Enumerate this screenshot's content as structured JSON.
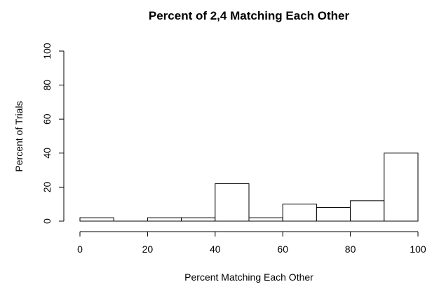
{
  "chart_data": {
    "type": "bar",
    "title": "Percent of 2,4 Matching Each Other",
    "xlabel": "Percent Matching Each Other",
    "ylabel": "Percent of Trials",
    "xlim": [
      0,
      100
    ],
    "ylim": [
      0,
      100
    ],
    "x_ticks": [
      0,
      20,
      40,
      60,
      80,
      100
    ],
    "y_ticks": [
      0,
      20,
      40,
      60,
      80,
      100
    ],
    "bins": [
      {
        "start": 0,
        "end": 10,
        "value": 2
      },
      {
        "start": 10,
        "end": 20,
        "value": 0
      },
      {
        "start": 20,
        "end": 30,
        "value": 2
      },
      {
        "start": 30,
        "end": 40,
        "value": 2
      },
      {
        "start": 40,
        "end": 50,
        "value": 22
      },
      {
        "start": 50,
        "end": 60,
        "value": 2
      },
      {
        "start": 60,
        "end": 70,
        "value": 10
      },
      {
        "start": 70,
        "end": 80,
        "value": 8
      },
      {
        "start": 80,
        "end": 90,
        "value": 12
      },
      {
        "start": 90,
        "end": 100,
        "value": 40
      }
    ],
    "grid": false,
    "legend": "none"
  }
}
